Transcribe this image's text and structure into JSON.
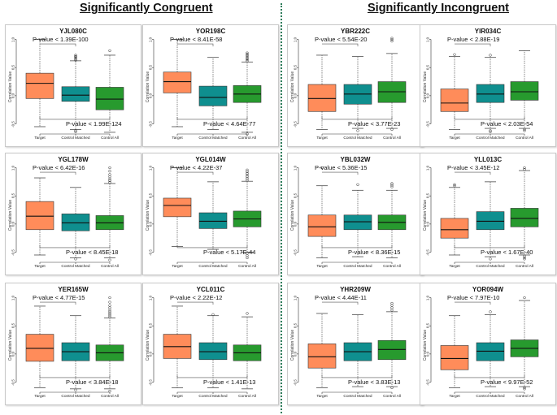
{
  "headings": {
    "left": "Significantly Congruent",
    "right": "Significantly Incongruent"
  },
  "colors": {
    "target": "#ff8c5a",
    "matched": "#0f8f8f",
    "all": "#279a2e",
    "divider": "#2e7d5b"
  },
  "chart_data": [
    {
      "type": "box",
      "title": "YJL080C",
      "ylabel": "Correlation Value",
      "categories": [
        "Target",
        "Control Matched",
        "Control All"
      ],
      "yticks": [
        "1.0",
        "0.5",
        "0.0",
        "-0.5"
      ],
      "ylim": [
        -0.68,
        1.08
      ],
      "pvalues": {
        "top": "P-value < 1.39E-100",
        "bottom": "P-value < 1.99E-124"
      },
      "boxes": [
        {
          "q1": -0.05,
          "median": 0.22,
          "q3": 0.4,
          "whisker_low": -0.55,
          "whisker_high": 1.0,
          "outliers": []
        },
        {
          "q1": -0.1,
          "median": 0.01,
          "q3": 0.16,
          "whisker_low": -0.6,
          "whisker_high": 0.62,
          "outliers": [
            0.63,
            0.65,
            0.67,
            0.69,
            0.7,
            0.72,
            -0.62,
            -0.64
          ]
        },
        {
          "q1": -0.25,
          "median": -0.06,
          "q3": 0.15,
          "whisker_low": -0.65,
          "whisker_high": 0.72,
          "outliers": [
            0.8
          ]
        }
      ]
    },
    {
      "type": "box",
      "title": "YOR198C",
      "ylabel": "Correlation Value",
      "categories": [
        "Target",
        "Control Matched",
        "Control All"
      ],
      "yticks": [
        "1.0",
        "0.5",
        "0.0",
        "-0.5"
      ],
      "ylim": [
        -0.68,
        1.08
      ],
      "pvalues": {
        "top": "P-value < 8.41E-58",
        "bottom": "P-value < 4.64E-77"
      },
      "boxes": [
        {
          "q1": 0.05,
          "median": 0.25,
          "q3": 0.42,
          "whisker_low": -0.55,
          "whisker_high": 1.0,
          "outliers": []
        },
        {
          "q1": -0.18,
          "median": -0.03,
          "q3": 0.17,
          "whisker_low": -0.6,
          "whisker_high": 0.68,
          "outliers": []
        },
        {
          "q1": -0.12,
          "median": 0.03,
          "q3": 0.18,
          "whisker_low": -0.65,
          "whisker_high": 0.6,
          "outliers": [
            0.62,
            0.64,
            0.66,
            0.68,
            0.7,
            0.72,
            0.74,
            0.76,
            -0.68
          ]
        }
      ]
    },
    {
      "type": "box",
      "title": "YGL178W",
      "ylabel": "Correlation Value",
      "categories": [
        "Target",
        "Control Matched",
        "Control All"
      ],
      "yticks": [
        "1.0",
        "0.5",
        "0.0",
        "-0.5"
      ],
      "ylim": [
        -0.68,
        1.08
      ],
      "pvalues": {
        "top": "P-value < 6.42E-16",
        "bottom": "P-value < 8.45E-18"
      },
      "boxes": [
        {
          "q1": -0.1,
          "median": 0.14,
          "q3": 0.4,
          "whisker_low": -0.55,
          "whisker_high": 0.82,
          "outliers": []
        },
        {
          "q1": -0.12,
          "median": 0.02,
          "q3": 0.18,
          "whisker_low": -0.6,
          "whisker_high": 0.65,
          "outliers": [
            -0.62
          ]
        },
        {
          "q1": -0.1,
          "median": 0.02,
          "q3": 0.15,
          "whisker_low": -0.6,
          "whisker_high": 0.72,
          "outliers": [
            0.74,
            0.77,
            0.8,
            0.84,
            0.88,
            0.94,
            1.0,
            -0.64
          ]
        }
      ]
    },
    {
      "type": "box",
      "title": "YGL014W",
      "ylabel": "Correlation Value",
      "categories": [
        "Target",
        "Control Matched",
        "Control All"
      ],
      "yticks": [
        "1.0",
        "0.5",
        "0.0",
        "-0.5"
      ],
      "ylim": [
        -0.68,
        1.08
      ],
      "pvalues": {
        "top": "P-value < 4.22E-37",
        "bottom": "P-value < 5.17E-44"
      },
      "boxes": [
        {
          "q1": 0.13,
          "median": 0.33,
          "q3": 0.46,
          "whisker_low": -0.4,
          "whisker_high": 1.0,
          "outliers": []
        },
        {
          "q1": -0.08,
          "median": 0.05,
          "q3": 0.2,
          "whisker_low": -0.45,
          "whisker_high": 0.75,
          "outliers": []
        },
        {
          "q1": -0.05,
          "median": 0.09,
          "q3": 0.23,
          "whisker_low": -0.5,
          "whisker_high": 0.76,
          "outliers": [
            0.78,
            0.81,
            0.84,
            0.87,
            0.9,
            0.93,
            0.96,
            -0.52,
            -0.56,
            -0.6
          ]
        }
      ]
    },
    {
      "type": "box",
      "title": "YER165W",
      "ylabel": "Correlation Value",
      "categories": [
        "Target",
        "Control Matched",
        "Control All"
      ],
      "yticks": [
        "1.0",
        "0.5",
        "0.0",
        "-0.5"
      ],
      "ylim": [
        -0.68,
        1.08
      ],
      "pvalues": {
        "top": "P-value < 4.77E-15",
        "bottom": "P-value < 3.84E-18"
      },
      "boxes": [
        {
          "q1": -0.13,
          "median": 0.1,
          "q3": 0.35,
          "whisker_low": -0.6,
          "whisker_high": 0.85,
          "outliers": []
        },
        {
          "q1": -0.12,
          "median": 0.04,
          "q3": 0.2,
          "whisker_low": -0.62,
          "whisker_high": 0.68,
          "outliers": [
            -0.64
          ]
        },
        {
          "q1": -0.12,
          "median": 0.02,
          "q3": 0.16,
          "whisker_low": -0.62,
          "whisker_high": 0.64,
          "outliers": [
            0.66,
            0.69,
            0.72,
            0.75,
            0.78,
            0.82,
            0.86,
            0.92,
            1.0,
            -0.66
          ]
        }
      ]
    },
    {
      "type": "box",
      "title": "YCL011C",
      "ylabel": "Correlation Value",
      "categories": [
        "Target",
        "Control Matched",
        "Control All"
      ],
      "yticks": [
        "1.0",
        "0.5",
        "0.0",
        "-0.5"
      ],
      "ylim": [
        -0.68,
        1.08
      ],
      "pvalues": {
        "top": "P-value < 2.22E-12",
        "bottom": "P-value < 1.41E-13"
      },
      "boxes": [
        {
          "q1": -0.08,
          "median": 0.13,
          "q3": 0.35,
          "whisker_low": -0.6,
          "whisker_high": 0.85,
          "outliers": []
        },
        {
          "q1": -0.1,
          "median": 0.04,
          "q3": 0.2,
          "whisker_low": -0.6,
          "whisker_high": 0.68,
          "outliers": [
            0.7
          ]
        },
        {
          "q1": -0.12,
          "median": 0.02,
          "q3": 0.16,
          "whisker_low": -0.62,
          "whisker_high": 0.66,
          "outliers": [
            0.72
          ]
        }
      ]
    },
    {
      "type": "box",
      "title": "YBR222C",
      "ylabel": "Correlation Value",
      "categories": [
        "Target",
        "Control Matched",
        "Control All"
      ],
      "yticks": [
        "1.0",
        "0.5",
        "0.0",
        "-0.5"
      ],
      "ylim": [
        -0.68,
        1.08
      ],
      "pvalues": {
        "top": "P-value < 5.54E-20",
        "bottom": "P-value < 3.77E-23"
      },
      "boxes": [
        {
          "q1": -0.28,
          "median": -0.05,
          "q3": 0.2,
          "whisker_low": -0.6,
          "whisker_high": 0.72,
          "outliers": []
        },
        {
          "q1": -0.15,
          "median": 0.03,
          "q3": 0.2,
          "whisker_low": -0.58,
          "whisker_high": 0.7,
          "outliers": [
            -0.62
          ]
        },
        {
          "q1": -0.12,
          "median": 0.07,
          "q3": 0.25,
          "whisker_low": -0.58,
          "whisker_high": 0.75,
          "outliers": [
            0.97,
            1.0,
            1.02,
            -0.6
          ]
        }
      ]
    },
    {
      "type": "box",
      "title": "YIR034C",
      "ylabel": "Correlation Value",
      "categories": [
        "Target",
        "Control Matched",
        "Control All"
      ],
      "yticks": [
        "1.0",
        "0.5",
        "0.0",
        "-0.5"
      ],
      "ylim": [
        -0.68,
        1.08
      ],
      "pvalues": {
        "top": "P-value < 2.88E-19",
        "bottom": "P-value < 2.03E-54"
      },
      "boxes": [
        {
          "q1": -0.28,
          "median": -0.13,
          "q3": 0.12,
          "whisker_low": -0.6,
          "whisker_high": 0.7,
          "outliers": [
            0.73
          ]
        },
        {
          "q1": -0.12,
          "median": 0.03,
          "q3": 0.2,
          "whisker_low": -0.58,
          "whisker_high": 0.68,
          "outliers": [
            0.72,
            -0.62,
            -0.64
          ]
        },
        {
          "q1": -0.08,
          "median": 0.07,
          "q3": 0.25,
          "whisker_low": -0.58,
          "whisker_high": 0.8,
          "outliers": [
            -0.6,
            -0.62
          ]
        }
      ]
    },
    {
      "type": "box",
      "title": "YBL032W",
      "ylabel": "Correlation Value",
      "categories": [
        "Target",
        "Control Matched",
        "Control All"
      ],
      "yticks": [
        "1.0",
        "0.5",
        "0.0",
        "-0.5"
      ],
      "ylim": [
        -0.68,
        1.08
      ],
      "pvalues": {
        "top": "P-value < 5.36E-15",
        "bottom": "P-value < 8.36E-15"
      },
      "boxes": [
        {
          "q1": -0.22,
          "median": -0.05,
          "q3": 0.16,
          "whisker_low": -0.6,
          "whisker_high": 0.68,
          "outliers": [
            1.0
          ]
        },
        {
          "q1": -0.1,
          "median": 0.04,
          "q3": 0.16,
          "whisker_low": -0.58,
          "whisker_high": 0.6,
          "outliers": [
            0.7
          ]
        },
        {
          "q1": -0.1,
          "median": 0.03,
          "q3": 0.16,
          "whisker_low": -0.6,
          "whisker_high": 0.6,
          "outliers": [
            0.66,
            0.69,
            0.72
          ]
        }
      ]
    },
    {
      "type": "box",
      "title": "YLL013C",
      "ylabel": "Correlation Value",
      "categories": [
        "Target",
        "Control Matched",
        "Control All"
      ],
      "yticks": [
        "1.0",
        "0.5",
        "0.0",
        "-0.5"
      ],
      "ylim": [
        -0.68,
        1.08
      ],
      "pvalues": {
        "top": "P-value < 3.45E-12",
        "bottom": "P-value < 1.67E-40"
      },
      "boxes": [
        {
          "q1": -0.25,
          "median": -0.1,
          "q3": 0.1,
          "whisker_low": -0.55,
          "whisker_high": 0.65,
          "outliers": [
            0.68,
            0.7
          ]
        },
        {
          "q1": -0.1,
          "median": 0.05,
          "q3": 0.22,
          "whisker_low": -0.58,
          "whisker_high": 0.75,
          "outliers": [
            -0.62
          ]
        },
        {
          "q1": -0.05,
          "median": 0.1,
          "q3": 0.28,
          "whisker_low": -0.55,
          "whisker_high": 0.95,
          "outliers": [
            0.97,
            1.0,
            -0.57,
            -0.6,
            -0.62
          ]
        }
      ]
    },
    {
      "type": "box",
      "title": "YHR209W",
      "ylabel": "Correlation Value",
      "categories": [
        "Target",
        "Control Matched",
        "Control All"
      ],
      "yticks": [
        "1.0",
        "0.5",
        "0.0",
        "-0.5"
      ],
      "ylim": [
        -0.68,
        1.08
      ],
      "pvalues": {
        "top": "P-value < 4.44E-11",
        "bottom": "P-value < 3.83E-13"
      },
      "boxes": [
        {
          "q1": -0.25,
          "median": -0.05,
          "q3": 0.18,
          "whisker_low": -0.6,
          "whisker_high": 0.72,
          "outliers": []
        },
        {
          "q1": -0.12,
          "median": 0.04,
          "q3": 0.2,
          "whisker_low": -0.58,
          "whisker_high": 0.7,
          "outliers": []
        },
        {
          "q1": -0.1,
          "median": 0.08,
          "q3": 0.24,
          "whisker_low": -0.58,
          "whisker_high": 0.75,
          "outliers": [
            0.78,
            0.82,
            0.86,
            0.9,
            -0.6
          ]
        }
      ]
    },
    {
      "type": "box",
      "title": "YOR094W",
      "ylabel": "Correlation Value",
      "categories": [
        "Target",
        "Control Matched",
        "Control All"
      ],
      "yticks": [
        "1.0",
        "0.5",
        "0.0",
        "-0.5"
      ],
      "ylim": [
        -0.68,
        1.08
      ],
      "pvalues": {
        "top": "P-value < 7.97E-10",
        "bottom": "P-value < 9.97E-52"
      },
      "boxes": [
        {
          "q1": -0.28,
          "median": -0.08,
          "q3": 0.15,
          "whisker_low": -0.6,
          "whisker_high": 0.68,
          "outliers": []
        },
        {
          "q1": -0.12,
          "median": 0.05,
          "q3": 0.2,
          "whisker_low": -0.58,
          "whisker_high": 0.7,
          "outliers": [
            0.75
          ]
        },
        {
          "q1": -0.05,
          "median": 0.1,
          "q3": 0.25,
          "whisker_low": -0.58,
          "whisker_high": 0.95,
          "outliers": [
            1.0,
            -0.6,
            -0.62
          ]
        }
      ]
    }
  ]
}
